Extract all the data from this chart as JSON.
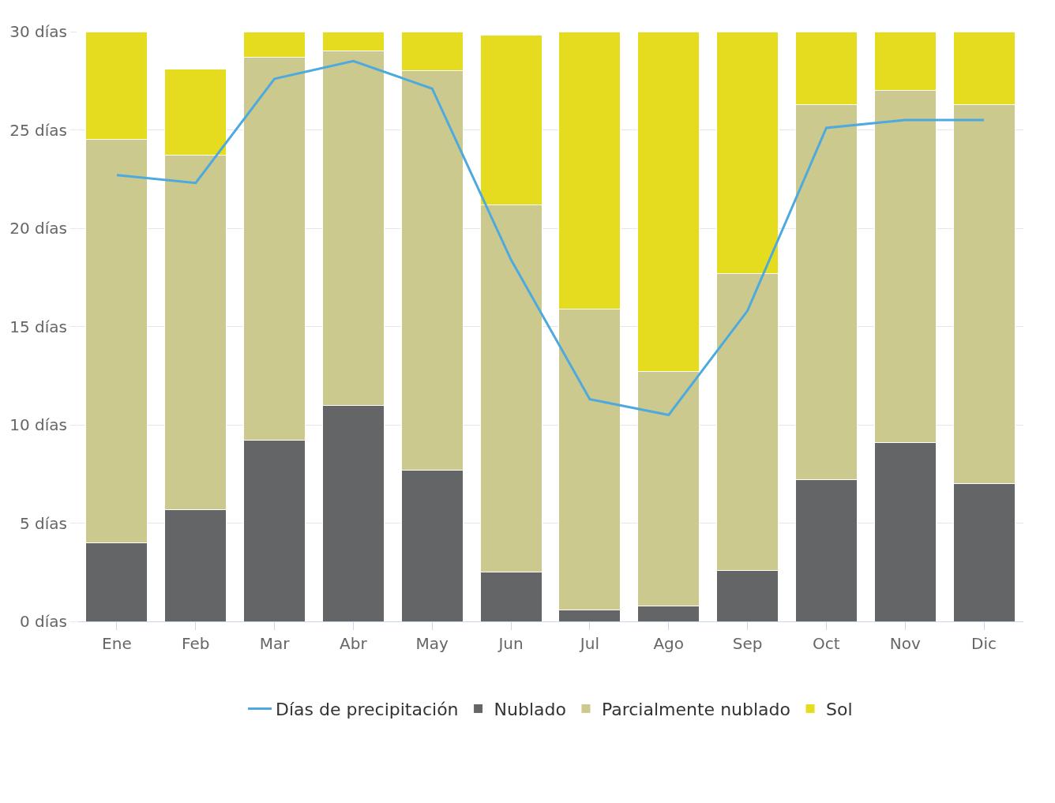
{
  "chart_data": {
    "type": "bar",
    "stacked": true,
    "categories": [
      "Ene",
      "Feb",
      "Mar",
      "Abr",
      "May",
      "Jun",
      "Jul",
      "Ago",
      "Sep",
      "Oct",
      "Nov",
      "Dic"
    ],
    "series": [
      {
        "name": "Nublado",
        "color": "#646567",
        "values": [
          4.0,
          5.7,
          9.2,
          11.0,
          7.7,
          2.5,
          0.6,
          0.8,
          2.6,
          7.2,
          9.1,
          7.0
        ]
      },
      {
        "name": "Parcialmente nublado",
        "color": "#cbc98d",
        "values": [
          20.5,
          18.0,
          19.5,
          18.0,
          20.3,
          18.7,
          15.3,
          11.9,
          15.1,
          19.1,
          17.9,
          19.3
        ]
      },
      {
        "name": "Sol",
        "color": "#e5dc20",
        "values": [
          5.5,
          4.4,
          1.3,
          1.0,
          2.0,
          8.6,
          14.1,
          17.3,
          12.3,
          3.7,
          3.0,
          3.7
        ]
      },
      {
        "name": "Días de precipitación",
        "type": "line",
        "color": "#4ea9de",
        "values": [
          22.7,
          22.3,
          27.6,
          28.5,
          27.1,
          18.4,
          11.3,
          10.5,
          15.8,
          25.1,
          25.5,
          25.5
        ]
      }
    ],
    "ylim": [
      0,
      30
    ],
    "yticks": [
      {
        "value": 0,
        "label": "0 días"
      },
      {
        "value": 5,
        "label": "5 días"
      },
      {
        "value": 10,
        "label": "10 días"
      },
      {
        "value": 15,
        "label": "15 días"
      },
      {
        "value": 20,
        "label": "20 días"
      },
      {
        "value": 25,
        "label": "25 días"
      },
      {
        "value": 30,
        "label": "30 días"
      }
    ],
    "grid": "y",
    "legend": "bottom",
    "marker": "none",
    "line_style": "solid"
  }
}
